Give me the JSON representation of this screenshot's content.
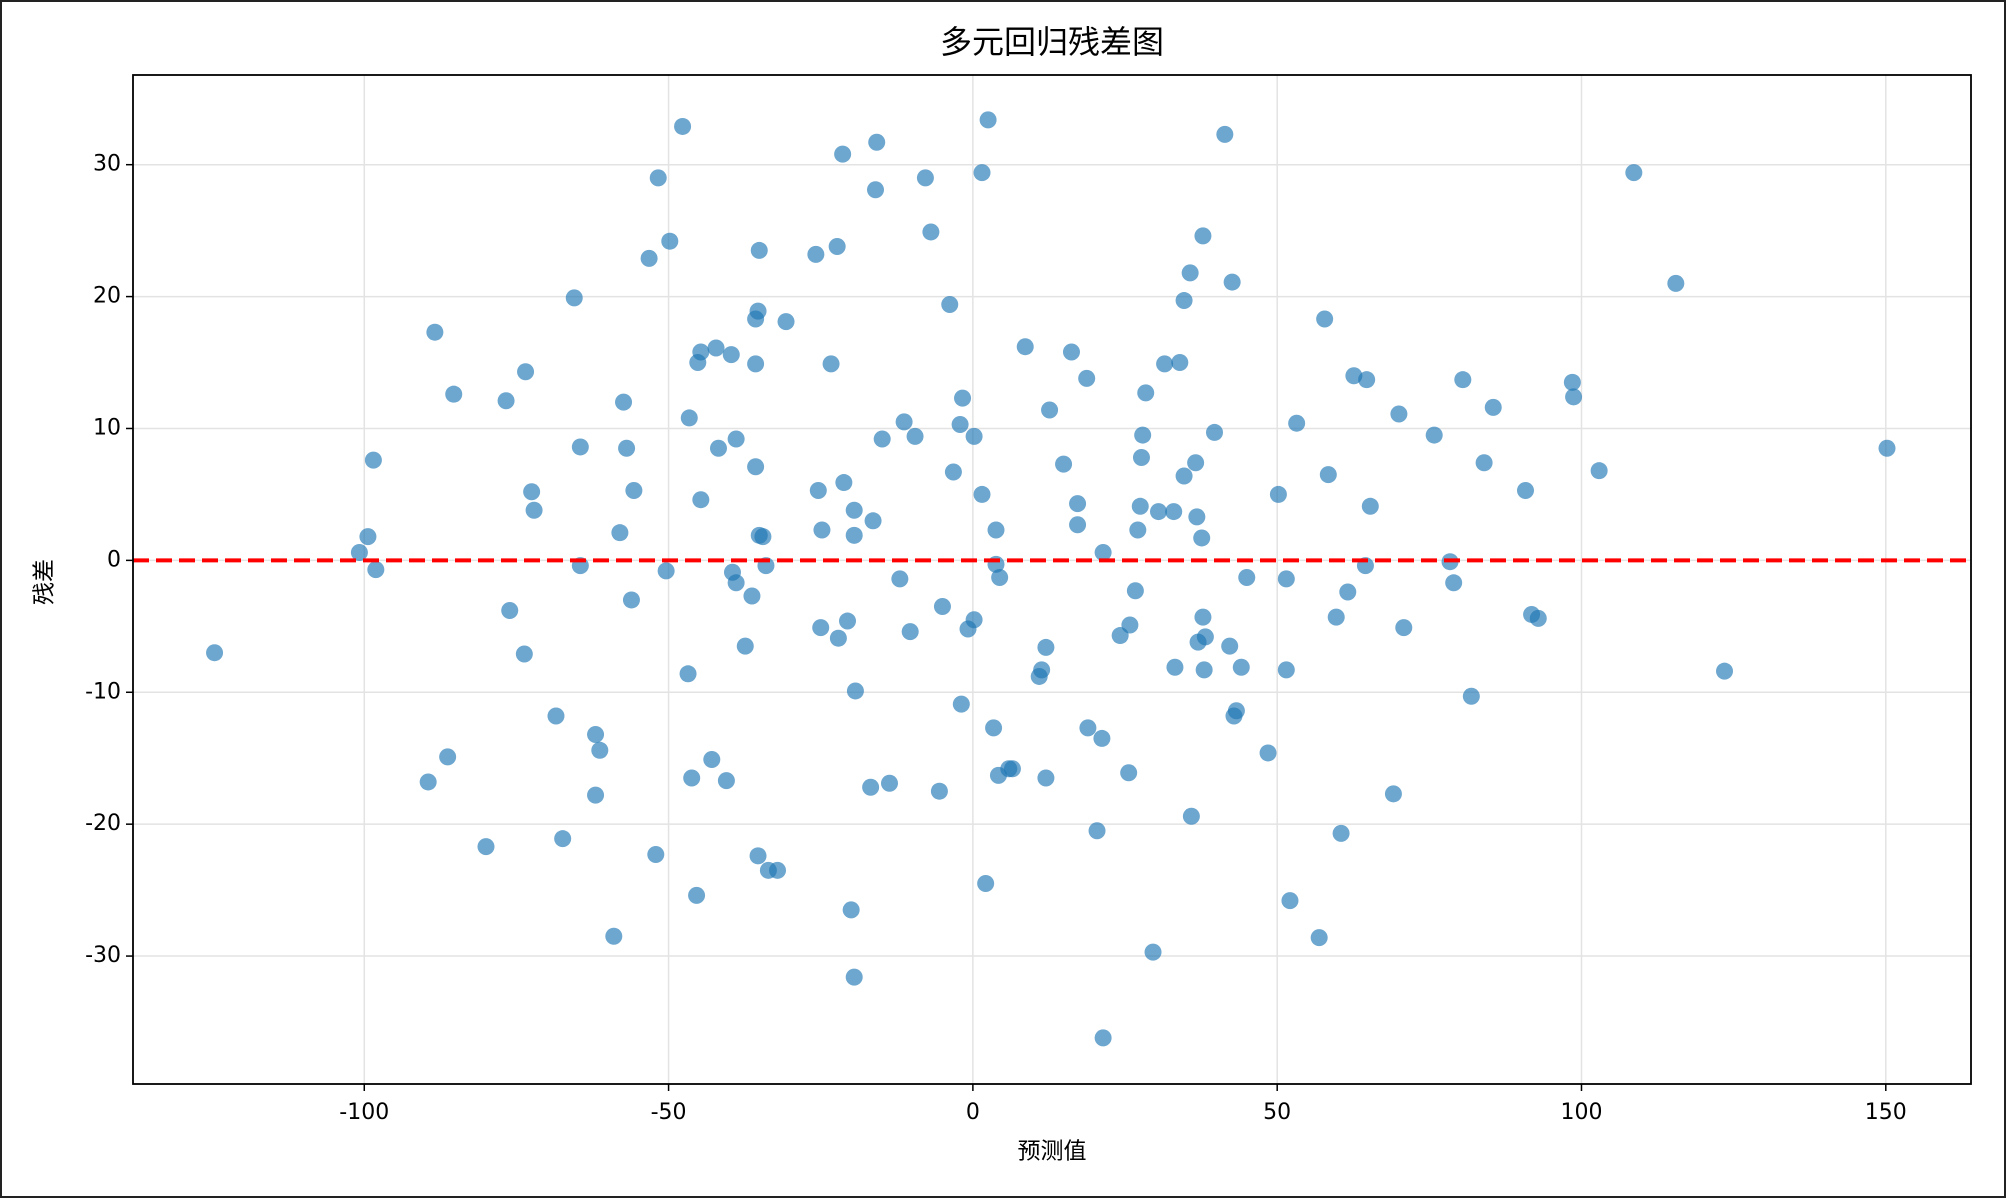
{
  "chart_data": {
    "type": "scatter",
    "title": "多元回归残差图",
    "x_label": "预测值",
    "y_label": "残差",
    "color": "#1f77b4",
    "grid": true,
    "reference_line": {
      "y": 0,
      "color": "#ff0000",
      "style": "dashed"
    },
    "xlim": [
      -138,
      164
    ],
    "ylim": [
      -39.7,
      36.8
    ],
    "xticks": [
      -100,
      -50,
      0,
      50,
      100,
      150
    ],
    "yticks": [
      -30,
      -20,
      -10,
      0,
      10,
      20,
      30
    ],
    "x": [
      -124.6,
      -100.8,
      -99.4,
      -98.5,
      -98.1,
      -88.4,
      -89.5,
      -86.3,
      -85.3,
      -80.0,
      -76.7,
      -76.1,
      -73.5,
      -73.7,
      -72.5,
      -72.1,
      -68.5,
      -67.4,
      -65.5,
      -64.5,
      -64.5,
      -62.0,
      -61.3,
      -62.0,
      -59.0,
      -58.0,
      -57.4,
      -56.9,
      -55.7,
      -56.1,
      -53.2,
      -52.1,
      -51.7,
      -50.4,
      -49.8,
      -47.7,
      -46.6,
      -46.8,
      -46.2,
      -45.4,
      -45.2,
      -44.7,
      -44.7,
      -42.9,
      -42.2,
      -41.8,
      -40.5,
      -39.7,
      -39.5,
      -38.9,
      -38.9,
      -37.4,
      -36.3,
      -35.7,
      -35.7,
      -35.3,
      -35.7,
      -35.3,
      -35.1,
      -35.1,
      -34.5,
      -34.0,
      -33.6,
      -32.1,
      -30.7,
      -25.8,
      -25.4,
      -25.0,
      -24.8,
      -23.3,
      -22.3,
      -22.1,
      -21.4,
      -21.2,
      -20.6,
      -20.0,
      -19.5,
      -19.5,
      -19.3,
      -19.5,
      -16.8,
      -16.4,
      -16.0,
      -15.8,
      -14.9,
      -13.7,
      -12.0,
      -11.3,
      -10.3,
      -9.5,
      -7.8,
      -6.9,
      -5.5,
      -5.0,
      -3.8,
      -3.2,
      -2.1,
      -1.9,
      -1.7,
      -0.8,
      0.2,
      0.2,
      1.5,
      1.5,
      2.1,
      2.5,
      3.4,
      3.8,
      3.8,
      4.2,
      4.4,
      5.9,
      6.5,
      8.6,
      10.9,
      11.3,
      12.0,
      12.0,
      12.6,
      14.9,
      16.2,
      17.2,
      17.2,
      18.7,
      18.9,
      20.4,
      21.2,
      21.4,
      21.4,
      24.2,
      25.6,
      25.8,
      26.7,
      27.1,
      27.5,
      27.7,
      27.9,
      28.4,
      29.6,
      30.5,
      31.5,
      33.0,
      33.2,
      34.0,
      34.7,
      34.7,
      35.7,
      35.9,
      36.6,
      36.8,
      37.0,
      37.6,
      37.8,
      38.0,
      37.8,
      38.2,
      39.7,
      41.4,
      42.2,
      42.6,
      42.9,
      43.3,
      44.1,
      45.0,
      48.5,
      50.2,
      51.5,
      51.5,
      52.1,
      53.2,
      56.9,
      57.8,
      58.4,
      59.7,
      60.5,
      61.6,
      62.6,
      64.5,
      64.7,
      65.3,
      69.1,
      70.0,
      70.8,
      75.8,
      78.4,
      79.0,
      80.5,
      81.9,
      84.0,
      85.5,
      90.8,
      91.8,
      92.9,
      98.5,
      98.7,
      102.9,
      108.6,
      115.5,
      123.5,
      150.2
    ],
    "values": [
      -7.0,
      0.6,
      1.8,
      7.6,
      -0.7,
      17.3,
      -16.8,
      -14.9,
      12.6,
      -21.7,
      12.1,
      -3.8,
      14.3,
      -7.1,
      5.2,
      3.8,
      -11.8,
      -21.1,
      19.9,
      8.6,
      -0.4,
      -13.2,
      -14.4,
      -17.8,
      -28.5,
      2.1,
      12.0,
      8.5,
      5.3,
      -3.0,
      22.9,
      -22.3,
      29.0,
      -0.8,
      24.2,
      32.9,
      10.8,
      -8.6,
      -16.5,
      -25.4,
      15.0,
      15.8,
      4.6,
      -15.1,
      16.1,
      8.5,
      -16.7,
      15.6,
      -0.9,
      -1.7,
      9.2,
      -6.5,
      -2.7,
      14.9,
      18.3,
      18.9,
      7.1,
      -22.4,
      23.5,
      1.9,
      1.8,
      -0.4,
      -23.5,
      -23.5,
      18.1,
      23.2,
      5.3,
      -5.1,
      2.3,
      14.9,
      23.8,
      -5.9,
      30.8,
      5.9,
      -4.6,
      -26.5,
      3.8,
      1.9,
      -9.9,
      -31.6,
      -17.2,
      3.0,
      28.1,
      31.7,
      9.2,
      -16.9,
      -1.4,
      10.5,
      -5.4,
      9.4,
      29.0,
      24.9,
      -17.5,
      -3.5,
      19.4,
      6.7,
      10.3,
      -10.9,
      12.3,
      -5.2,
      -4.5,
      9.4,
      29.4,
      5.0,
      -24.5,
      33.4,
      -12.7,
      2.3,
      -0.3,
      -16.3,
      -1.3,
      -15.8,
      -15.8,
      16.2,
      -8.8,
      -8.3,
      -6.6,
      -16.5,
      11.4,
      7.3,
      15.8,
      4.3,
      2.7,
      13.8,
      -12.7,
      -20.5,
      -13.5,
      0.6,
      -36.2,
      -5.7,
      -16.1,
      -4.9,
      -2.3,
      2.3,
      4.1,
      7.8,
      9.5,
      12.7,
      -29.7,
      3.7,
      14.9,
      3.7,
      -8.1,
      15.0,
      6.4,
      19.7,
      21.8,
      -19.4,
      7.4,
      3.3,
      -6.2,
      1.7,
      -4.3,
      -8.3,
      24.6,
      -5.8,
      9.7,
      32.3,
      -6.5,
      21.1,
      -11.8,
      -11.4,
      -8.1,
      -1.3,
      -14.6,
      5.0,
      -1.4,
      -8.3,
      -25.8,
      10.4,
      -28.6,
      18.3,
      6.5,
      -4.3,
      -20.7,
      -2.4,
      14.0,
      -0.4,
      13.7,
      4.1,
      -17.7,
      11.1,
      -5.1,
      9.5,
      -0.1,
      -1.7,
      13.7,
      -10.3,
      7.4,
      11.6,
      5.3,
      -4.1,
      -4.4,
      13.5,
      12.4,
      6.8,
      29.4,
      21.0,
      -8.4,
      8.5
    ]
  }
}
